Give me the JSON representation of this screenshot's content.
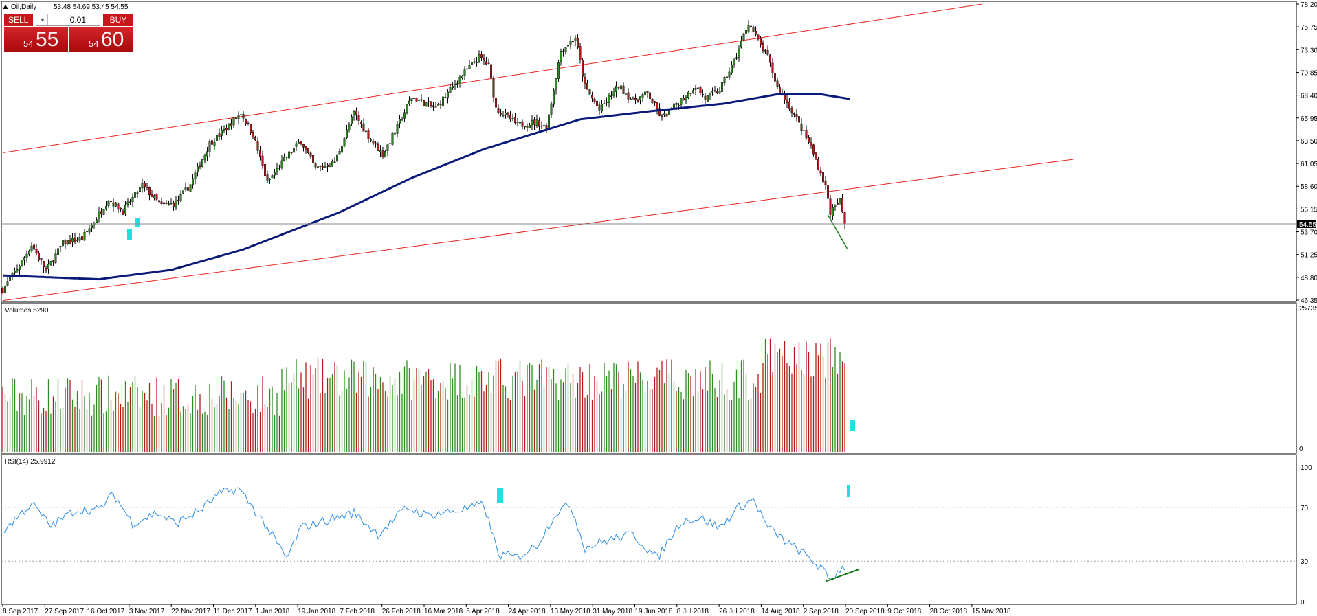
{
  "header": {
    "label": "Oil,Daily",
    "ohlc": "53.48 54.69 53.45 54.55"
  },
  "trade": {
    "sell_label": "SELL",
    "buy_label": "BUY",
    "lot": "0.01",
    "sell_small": "54",
    "sell_big": "55",
    "buy_small": "54",
    "buy_big": "60"
  },
  "colors": {
    "bull": "#2e8b22",
    "bear": "#b21c1c",
    "ma": "#0a1a7a",
    "channel": "#e8211c",
    "rsi": "#2d8de6",
    "marker": "#20e0e0",
    "current_line": "#8a8a8a"
  },
  "price_axis": [
    "78.20",
    "75.75",
    "73.30",
    "70.85",
    "68.40",
    "65.95",
    "63.50",
    "61.05",
    "58.60",
    "56.15",
    "53.70",
    "51.25",
    "48.80",
    "46.35"
  ],
  "current_price": "54.55",
  "volume_panel": {
    "label": "Volumes 5290",
    "top_tick": "25735",
    "bottom_tick": "0"
  },
  "rsi_panel": {
    "label": "RSI(14) 25.9912",
    "ticks": [
      "100",
      "70",
      "30",
      "0"
    ]
  },
  "time_axis": [
    "8 Sep 2017",
    "27 Sep 2017",
    "16 Oct 2017",
    "3 Nov 2017",
    "22 Nov 2017",
    "11 Dec 2017",
    "1 Jan 2018",
    "19 Jan 2018",
    "7 Feb 2018",
    "26 Feb 2018",
    "16 Mar 2018",
    "5 Apr 2018",
    "24 Apr 2018",
    "13 May 2018",
    "31 May 2018",
    "19 Jun 2018",
    "8 Jul 2018",
    "26 Jul 2018",
    "14 Aug 2018",
    "2 Sep 2018",
    "20 Sep 2018",
    "9 Oct 2018",
    "28 Oct 2018",
    "15 Nov 2018"
  ],
  "chart_data": {
    "type": "candlestick",
    "symbol": "Oil",
    "timeframe": "Daily",
    "anchors": [
      {
        "i": 0,
        "p": 47.5
      },
      {
        "i": 8,
        "p": 50.5
      },
      {
        "i": 12,
        "p": 52.3
      },
      {
        "i": 18,
        "p": 49.5
      },
      {
        "i": 25,
        "p": 52.5
      },
      {
        "i": 33,
        "p": 53.0
      },
      {
        "i": 38,
        "p": 54.8
      },
      {
        "i": 44,
        "p": 57.2
      },
      {
        "i": 50,
        "p": 55.9
      },
      {
        "i": 58,
        "p": 58.7
      },
      {
        "i": 66,
        "p": 56.5
      },
      {
        "i": 72,
        "p": 56.8
      },
      {
        "i": 78,
        "p": 58.8
      },
      {
        "i": 86,
        "p": 63.2
      },
      {
        "i": 92,
        "p": 64.6
      },
      {
        "i": 99,
        "p": 66.5
      },
      {
        "i": 104,
        "p": 64.2
      },
      {
        "i": 110,
        "p": 59.0
      },
      {
        "i": 118,
        "p": 61.8
      },
      {
        "i": 124,
        "p": 63.5
      },
      {
        "i": 130,
        "p": 60.5
      },
      {
        "i": 138,
        "p": 61.2
      },
      {
        "i": 146,
        "p": 66.5
      },
      {
        "i": 152,
        "p": 64.0
      },
      {
        "i": 158,
        "p": 62.0
      },
      {
        "i": 164,
        "p": 65.0
      },
      {
        "i": 170,
        "p": 68.2
      },
      {
        "i": 180,
        "p": 67.0
      },
      {
        "i": 190,
        "p": 70.3
      },
      {
        "i": 198,
        "p": 72.5
      },
      {
        "i": 202,
        "p": 71.6
      },
      {
        "i": 205,
        "p": 67.0
      },
      {
        "i": 214,
        "p": 65.2
      },
      {
        "i": 222,
        "p": 65.5
      },
      {
        "i": 226,
        "p": 64.9
      },
      {
        "i": 232,
        "p": 73.2
      },
      {
        "i": 238,
        "p": 74.6
      },
      {
        "i": 242,
        "p": 69.3
      },
      {
        "i": 248,
        "p": 66.8
      },
      {
        "i": 256,
        "p": 69.4
      },
      {
        "i": 262,
        "p": 67.8
      },
      {
        "i": 268,
        "p": 68.6
      },
      {
        "i": 274,
        "p": 65.9
      },
      {
        "i": 282,
        "p": 67.9
      },
      {
        "i": 288,
        "p": 69.4
      },
      {
        "i": 292,
        "p": 68.0
      },
      {
        "i": 298,
        "p": 69.0
      },
      {
        "i": 304,
        "p": 72.0
      },
      {
        "i": 310,
        "p": 76.2
      },
      {
        "i": 314,
        "p": 74.2
      },
      {
        "i": 318,
        "p": 72.5
      },
      {
        "i": 322,
        "p": 69.2
      },
      {
        "i": 328,
        "p": 66.8
      },
      {
        "i": 336,
        "p": 62.8
      },
      {
        "i": 342,
        "p": 58.6
      },
      {
        "i": 344,
        "p": 55.8
      },
      {
        "i": 348,
        "p": 57.0
      },
      {
        "i": 350,
        "p": 54.55
      }
    ],
    "ma_200": [
      {
        "i": 0,
        "p": 49.0
      },
      {
        "i": 40,
        "p": 48.6
      },
      {
        "i": 70,
        "p": 49.6
      },
      {
        "i": 100,
        "p": 51.8
      },
      {
        "i": 140,
        "p": 55.8
      },
      {
        "i": 170,
        "p": 59.5
      },
      {
        "i": 200,
        "p": 62.6
      },
      {
        "i": 240,
        "p": 65.8
      },
      {
        "i": 270,
        "p": 66.7
      },
      {
        "i": 300,
        "p": 67.5
      },
      {
        "i": 322,
        "p": 68.5
      },
      {
        "i": 340,
        "p": 68.5
      },
      {
        "i": 352,
        "p": 68.0
      }
    ],
    "channel_lines": [
      {
        "x1": 0,
        "p1": 62.2,
        "x2": 407,
        "p2": 78.2
      },
      {
        "x1": 0,
        "p1": 46.3,
        "x2": 445,
        "p2": 61.5
      }
    ],
    "rsi_anchors": [
      {
        "i": 0,
        "v": 52
      },
      {
        "i": 12,
        "v": 73
      },
      {
        "i": 20,
        "v": 56
      },
      {
        "i": 30,
        "v": 68
      },
      {
        "i": 40,
        "v": 68
      },
      {
        "i": 46,
        "v": 80
      },
      {
        "i": 54,
        "v": 58
      },
      {
        "i": 64,
        "v": 66
      },
      {
        "i": 72,
        "v": 58
      },
      {
        "i": 82,
        "v": 68
      },
      {
        "i": 90,
        "v": 80
      },
      {
        "i": 98,
        "v": 84
      },
      {
        "i": 108,
        "v": 60
      },
      {
        "i": 118,
        "v": 32
      },
      {
        "i": 124,
        "v": 55
      },
      {
        "i": 134,
        "v": 60
      },
      {
        "i": 146,
        "v": 66
      },
      {
        "i": 156,
        "v": 50
      },
      {
        "i": 168,
        "v": 70
      },
      {
        "i": 176,
        "v": 64
      },
      {
        "i": 190,
        "v": 68
      },
      {
        "i": 200,
        "v": 72
      },
      {
        "i": 206,
        "v": 35
      },
      {
        "i": 214,
        "v": 33
      },
      {
        "i": 222,
        "v": 42
      },
      {
        "i": 230,
        "v": 66
      },
      {
        "i": 236,
        "v": 72
      },
      {
        "i": 242,
        "v": 40
      },
      {
        "i": 252,
        "v": 46
      },
      {
        "i": 262,
        "v": 50
      },
      {
        "i": 272,
        "v": 32
      },
      {
        "i": 282,
        "v": 60
      },
      {
        "i": 290,
        "v": 62
      },
      {
        "i": 298,
        "v": 55
      },
      {
        "i": 306,
        "v": 70
      },
      {
        "i": 312,
        "v": 76
      },
      {
        "i": 318,
        "v": 55
      },
      {
        "i": 326,
        "v": 44
      },
      {
        "i": 334,
        "v": 34
      },
      {
        "i": 340,
        "v": 25
      },
      {
        "i": 344,
        "v": 16
      },
      {
        "i": 348,
        "v": 24
      },
      {
        "i": 350,
        "v": 26
      }
    ],
    "rsi_trendline": {
      "i1": 342,
      "v1": 15,
      "i2": 356,
      "v2": 24
    },
    "price_trendline": {
      "i1": 343,
      "p1": 55.5,
      "i2": 351,
      "p2": 51.9
    },
    "ylim": [
      46.35,
      78.2
    ],
    "volume_range": [
      0,
      25735
    ],
    "rsi_range": [
      0,
      100
    ],
    "rsi_levels": [
      70,
      30
    ],
    "bar_count": 351,
    "current": 54.55
  }
}
